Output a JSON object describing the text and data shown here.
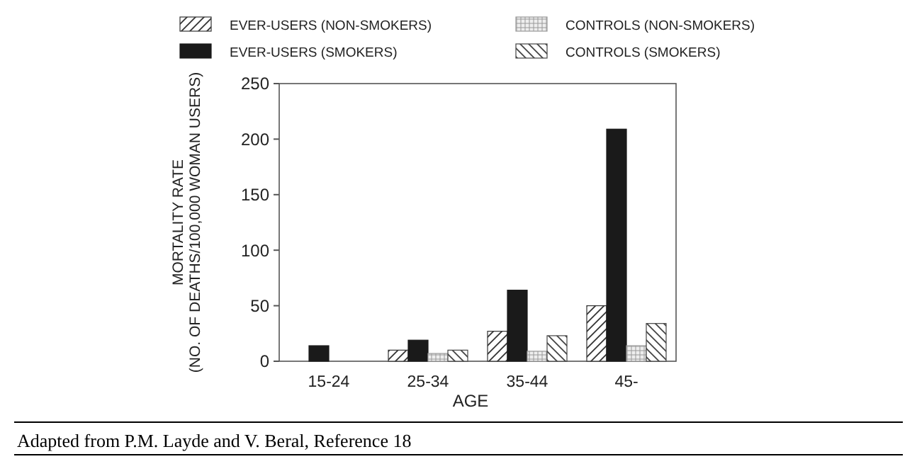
{
  "chart_data": {
    "type": "bar",
    "xlabel": "AGE",
    "ylabel": "MORTALITY RATE\n(NO. OF DEATHS/100,000 WOMAN USERS)",
    "categories": [
      "15-24",
      "25-34",
      "35-44",
      "45-"
    ],
    "series": [
      {
        "name": "EVER-USERS (NON-SMOKERS)",
        "color": "#333333",
        "values": [
          null,
          10,
          27,
          50
        ]
      },
      {
        "name": "EVER-USERS (SMOKERS)",
        "color": "#1a1a1a",
        "values": [
          14,
          19,
          64,
          209
        ]
      },
      {
        "name": "CONTROLS (NON-SMOKERS)",
        "color": "#999999",
        "values": [
          null,
          7,
          9,
          14
        ]
      },
      {
        "name": "CONTROLS (SMOKERS)",
        "color": "#444444",
        "values": [
          null,
          10,
          23,
          34
        ]
      }
    ],
    "ylim": [
      0,
      250
    ],
    "yticks": [
      0,
      50,
      100,
      150,
      200,
      250
    ],
    "grid": false,
    "legend": "top",
    "annotations": [
      "Adapted from P.M. Layde and V. Beral, Reference 18"
    ]
  }
}
